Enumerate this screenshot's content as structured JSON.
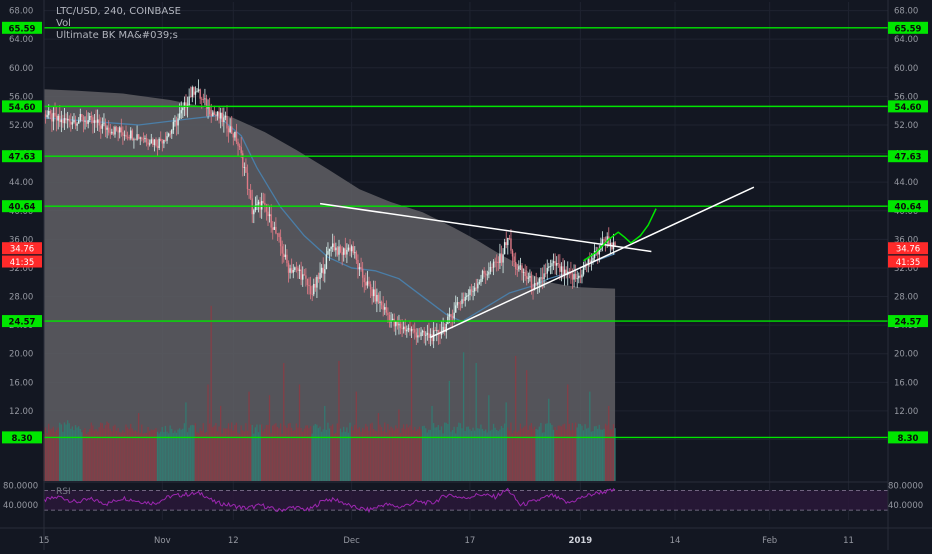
{
  "header": {
    "symbol_line": "LTC/USD, 240, COINBASE",
    "vol_label": "Vol",
    "indicator_label": "Ultimate BK MA&#039;s"
  },
  "rsi_label": "RSI",
  "colors": {
    "background": "#131722",
    "level_line": "#00e600",
    "level_tag": "#00e600",
    "price_tag": "#ff2a2a",
    "trendline": "#ffffff",
    "projection": "#00e600",
    "bull_candle": "#d8f2ee",
    "bear_candle": "#e07a86",
    "ma_fast": "#8f8f8f",
    "ma_slow": "#4a7ea8",
    "rsi_line": "#9c27b0",
    "vol_up": "#2f7f74",
    "vol_down": "#8d3b44"
  },
  "chart_data": {
    "type": "candlestick",
    "symbol": "LTC/USD",
    "interval": "240",
    "exchange": "COINBASE",
    "price_axis_ticks": [
      "68.00",
      "64.00",
      "60.00",
      "56.00",
      "52.00",
      "48.00",
      "44.00",
      "40.00",
      "36.00",
      "32.00",
      "28.00",
      "24.00",
      "20.00",
      "16.00",
      "12.00",
      "8.00"
    ],
    "price_axis_values": [
      68,
      64,
      60,
      56,
      52,
      48,
      44,
      40,
      36,
      32,
      28,
      24,
      20,
      16,
      12,
      8
    ],
    "ylim": [
      2.2,
      69.2
    ],
    "x_tick_labels": [
      "15",
      "Nov",
      "12",
      "Dec",
      "17",
      "2019",
      "14",
      "Feb",
      "11"
    ],
    "x_tick_index": [
      0,
      75,
      120,
      195,
      270,
      340,
      400,
      460,
      510
    ],
    "x_range": [
      0,
      535
    ],
    "horizontal_levels": [
      {
        "value": 65.59,
        "label": "65.59"
      },
      {
        "value": 54.6,
        "label": "54.60"
      },
      {
        "value": 47.63,
        "label": "47.63"
      },
      {
        "value": 40.64,
        "label": "40.64"
      },
      {
        "value": 24.57,
        "label": "24.57"
      },
      {
        "value": 8.3,
        "label": "8.30"
      }
    ],
    "price_tags": [
      {
        "value": 34.76,
        "label": "34.76"
      },
      {
        "value": 32.9,
        "label": "41:35"
      }
    ],
    "trendlines": [
      {
        "name": "descending-resistance",
        "points": [
          [
            175,
            41.0
          ],
          [
            385,
            34.3
          ]
        ]
      },
      {
        "name": "ascending-support",
        "points": [
          [
            245,
            22.3
          ],
          [
            450,
            43.3
          ]
        ]
      }
    ],
    "projection_path": [
      [
        342,
        33.0
      ],
      [
        350,
        34.2
      ],
      [
        358,
        36.0
      ],
      [
        364,
        37.0
      ],
      [
        368,
        36.3
      ],
      [
        372,
        35.5
      ],
      [
        378,
        36.5
      ],
      [
        383,
        38.0
      ],
      [
        388,
        40.3
      ]
    ],
    "price_path": [
      [
        0,
        53.5
      ],
      [
        10,
        52.5
      ],
      [
        25,
        52.8
      ],
      [
        45,
        51.2
      ],
      [
        60,
        50.5
      ],
      [
        72,
        49.5
      ],
      [
        80,
        51.0
      ],
      [
        88,
        54.0
      ],
      [
        92,
        56.0
      ],
      [
        96,
        57.2
      ],
      [
        100,
        55.5
      ],
      [
        108,
        53.5
      ],
      [
        115,
        52.5
      ],
      [
        122,
        50.0
      ],
      [
        127,
        46.0
      ],
      [
        132,
        40.0
      ],
      [
        138,
        41.0
      ],
      [
        145,
        38.0
      ],
      [
        150,
        35.0
      ],
      [
        155,
        32.0
      ],
      [
        162,
        31.5
      ],
      [
        170,
        28.5
      ],
      [
        178,
        32.5
      ],
      [
        182,
        35.5
      ],
      [
        188,
        34.0
      ],
      [
        195,
        35.0
      ],
      [
        200,
        31.5
      ],
      [
        208,
        28.5
      ],
      [
        215,
        26.5
      ],
      [
        222,
        24.0
      ],
      [
        230,
        23.5
      ],
      [
        240,
        22.5
      ],
      [
        248,
        22.5
      ],
      [
        255,
        24.0
      ],
      [
        262,
        27.0
      ],
      [
        270,
        28.5
      ],
      [
        278,
        31.0
      ],
      [
        284,
        32.0
      ],
      [
        290,
        33.5
      ],
      [
        294,
        36.5
      ],
      [
        298,
        32.5
      ],
      [
        305,
        31.0
      ],
      [
        312,
        29.0
      ],
      [
        318,
        31.5
      ],
      [
        324,
        32.5
      ],
      [
        330,
        31.0
      ],
      [
        338,
        30.5
      ],
      [
        344,
        32.5
      ],
      [
        350,
        34.0
      ],
      [
        356,
        36.2
      ],
      [
        362,
        34.7
      ]
    ],
    "ma_fast_path": [
      [
        0,
        57.0
      ],
      [
        20,
        56.8
      ],
      [
        50,
        56.4
      ],
      [
        80,
        55.5
      ],
      [
        100,
        54.6
      ],
      [
        120,
        53.0
      ],
      [
        140,
        51.0
      ],
      [
        160,
        48.5
      ],
      [
        180,
        45.8
      ],
      [
        200,
        43.0
      ],
      [
        220,
        41.2
      ],
      [
        240,
        39.8
      ],
      [
        260,
        37.6
      ],
      [
        275,
        35.8
      ],
      [
        290,
        33.8
      ],
      [
        300,
        32.6
      ],
      [
        310,
        31.0
      ],
      [
        320,
        30.0
      ],
      [
        330,
        29.6
      ],
      [
        340,
        29.3
      ],
      [
        350,
        29.2
      ],
      [
        362,
        29.1
      ]
    ],
    "ma_slow_path": [
      [
        0,
        53.0
      ],
      [
        30,
        52.5
      ],
      [
        60,
        52.0
      ],
      [
        90,
        52.8
      ],
      [
        110,
        53.3
      ],
      [
        125,
        50.5
      ],
      [
        135,
        46.0
      ],
      [
        150,
        40.5
      ],
      [
        165,
        36.5
      ],
      [
        180,
        33.5
      ],
      [
        195,
        32.0
      ],
      [
        210,
        31.6
      ],
      [
        225,
        30.5
      ],
      [
        240,
        28.0
      ],
      [
        255,
        25.5
      ],
      [
        265,
        24.5
      ],
      [
        280,
        26.5
      ],
      [
        295,
        28.5
      ],
      [
        310,
        29.5
      ],
      [
        320,
        30.5
      ],
      [
        335,
        31.5
      ],
      [
        350,
        33.0
      ],
      [
        362,
        34.0
      ]
    ],
    "volume_spikes": [
      [
        1,
        1.5
      ],
      [
        3,
        2.0
      ],
      [
        15,
        2.5
      ],
      [
        40,
        2.3
      ],
      [
        60,
        3.5
      ],
      [
        90,
        5.0
      ],
      [
        104,
        7.5
      ],
      [
        106,
        18.5
      ],
      [
        112,
        4.5
      ],
      [
        130,
        6.5
      ],
      [
        143,
        6.0
      ],
      [
        152,
        10.5
      ],
      [
        162,
        7.5
      ],
      [
        178,
        4.5
      ],
      [
        187,
        10.8
      ],
      [
        198,
        6.5
      ],
      [
        212,
        3.5
      ],
      [
        225,
        4.0
      ],
      [
        233,
        16.5
      ],
      [
        246,
        4.5
      ],
      [
        257,
        8.0
      ],
      [
        266,
        12.0
      ],
      [
        274,
        10.5
      ],
      [
        282,
        6.0
      ],
      [
        293,
        5.0
      ],
      [
        299,
        11.5
      ],
      [
        306,
        9.5
      ],
      [
        320,
        5.5
      ],
      [
        332,
        7.5
      ],
      [
        346,
        6.5
      ],
      [
        358,
        4.5
      ]
    ],
    "rsi": {
      "name": "RSI",
      "ticks": [
        "80.0000",
        "40.0000"
      ],
      "tick_values": [
        80,
        40
      ],
      "ylim": [
        10,
        85
      ],
      "bands": [
        70,
        30
      ],
      "path": [
        [
          0,
          50
        ],
        [
          10,
          57
        ],
        [
          20,
          46
        ],
        [
          30,
          52
        ],
        [
          40,
          43
        ],
        [
          50,
          55
        ],
        [
          60,
          48
        ],
        [
          70,
          44
        ],
        [
          80,
          58
        ],
        [
          90,
          62
        ],
        [
          100,
          64
        ],
        [
          108,
          46
        ],
        [
          118,
          40
        ],
        [
          128,
          34
        ],
        [
          138,
          40
        ],
        [
          148,
          29
        ],
        [
          158,
          36
        ],
        [
          168,
          30
        ],
        [
          178,
          52
        ],
        [
          186,
          50
        ],
        [
          196,
          36
        ],
        [
          206,
          30
        ],
        [
          216,
          42
        ],
        [
          226,
          36
        ],
        [
          236,
          47
        ],
        [
          246,
          44
        ],
        [
          256,
          62
        ],
        [
          266,
          54
        ],
        [
          276,
          62
        ],
        [
          286,
          57
        ],
        [
          294,
          72
        ],
        [
          302,
          40
        ],
        [
          312,
          49
        ],
        [
          322,
          60
        ],
        [
          332,
          44
        ],
        [
          342,
          57
        ],
        [
          352,
          66
        ],
        [
          362,
          70
        ]
      ]
    }
  }
}
